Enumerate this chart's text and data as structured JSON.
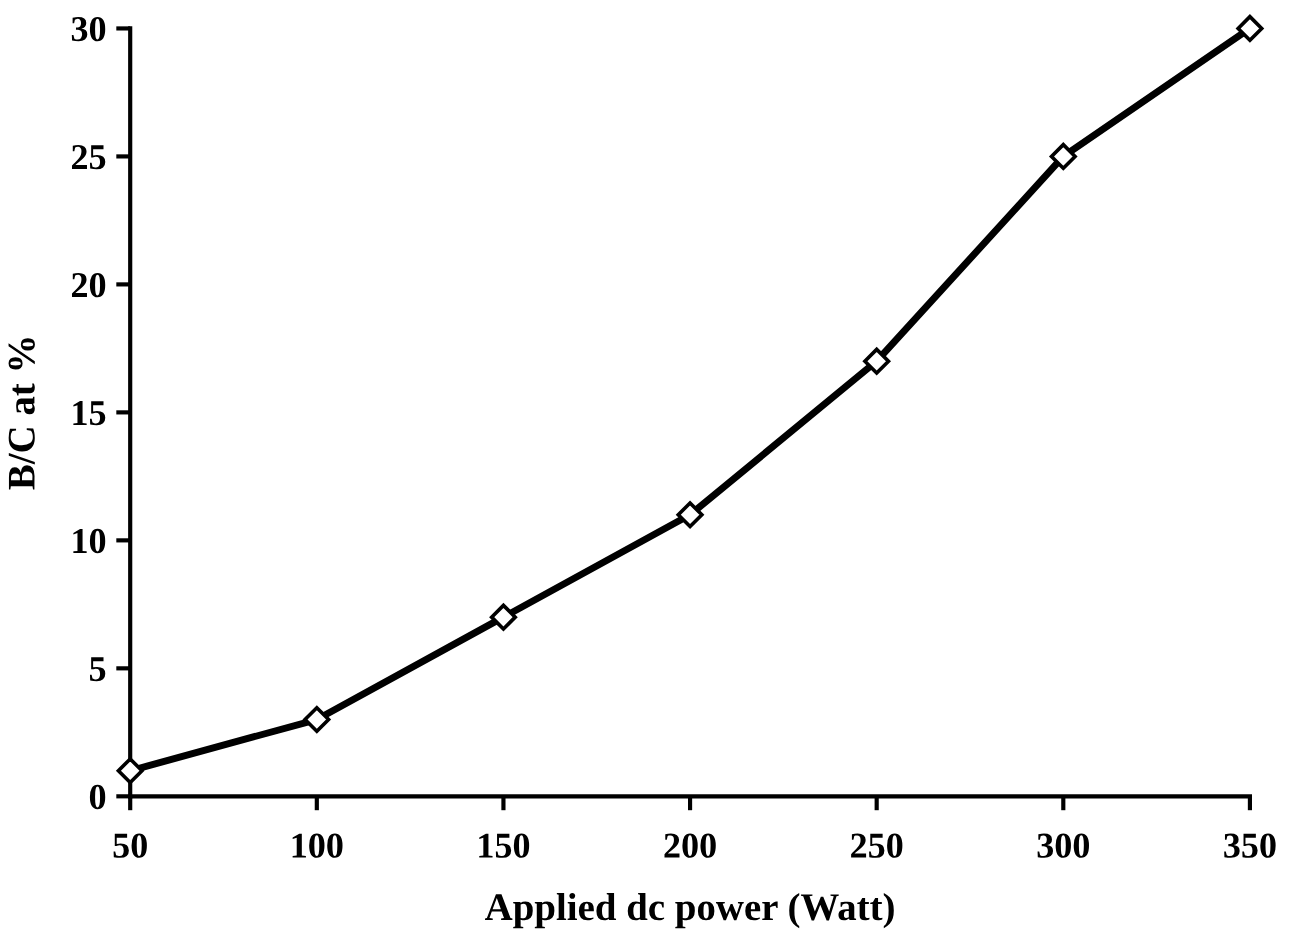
{
  "chart_data": {
    "type": "line",
    "xlabel": "Applied dc power (Watt)",
    "ylabel": "B/C at %",
    "x": [
      50,
      100,
      150,
      200,
      250,
      300,
      350
    ],
    "series": [
      {
        "color": "#000000",
        "values": [
          1,
          3,
          7,
          11,
          17,
          25,
          30
        ]
      }
    ],
    "xlim": [
      50,
      350
    ],
    "xticks": [
      50,
      100,
      150,
      200,
      250,
      300,
      350
    ],
    "ylim": [
      0,
      30
    ],
    "yticks": [
      0,
      5,
      10,
      15,
      20,
      25,
      30
    ],
    "marker": "diamond",
    "line_style": "solid",
    "grid": false,
    "legend": false
  }
}
